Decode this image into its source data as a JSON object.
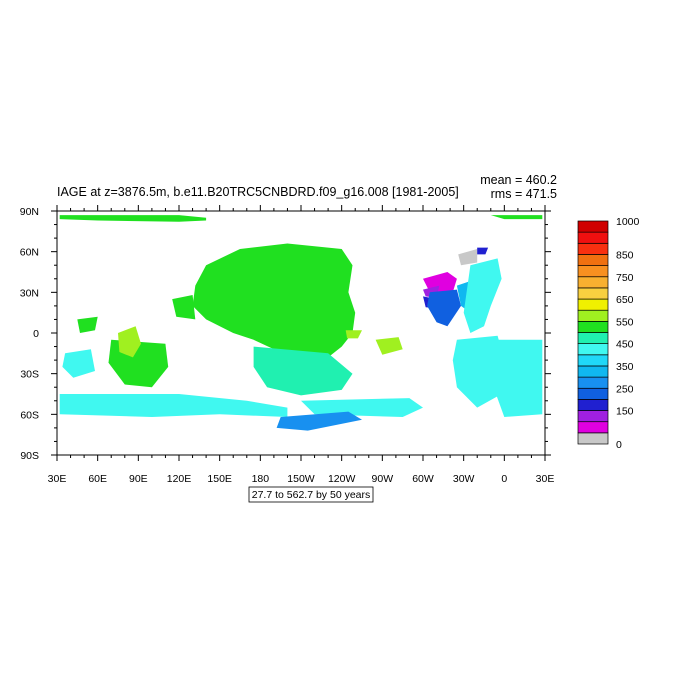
{
  "chart_data": {
    "type": "heatmap",
    "title": "IAGE at z=3876.5m, b.e11.B20TRC5CNBDRD.f09_g16.008 [1981-2005]",
    "stats": {
      "mean": "mean = 460.2",
      "rms": "rms = 471.5"
    },
    "x_ticks": [
      "30E",
      "60E",
      "90E",
      "120E",
      "150E",
      "180",
      "150W",
      "120W",
      "90W",
      "60W",
      "30W",
      "0",
      "30E"
    ],
    "y_ticks": [
      "90N",
      "60N",
      "30N",
      "0",
      "30S",
      "60S",
      "90S"
    ],
    "xlim": [
      30,
      390
    ],
    "ylim": [
      -90,
      90
    ],
    "contour_info": "27.7 to 562.7 by 50 years",
    "colorbar": {
      "labels": [
        {
          "value": 1000,
          "text": "1000"
        },
        {
          "value": 850,
          "text": "850"
        },
        {
          "value": 750,
          "text": "750"
        },
        {
          "value": 650,
          "text": "650"
        },
        {
          "value": 550,
          "text": "550"
        },
        {
          "value": 450,
          "text": "450"
        },
        {
          "value": 350,
          "text": "350"
        },
        {
          "value": 250,
          "text": "250"
        },
        {
          "value": 150,
          "text": "150"
        },
        {
          "value": 0,
          "text": "0"
        }
      ],
      "colors": [
        "#c8c8c8",
        "#e000e0",
        "#a020e0",
        "#2020d0",
        "#1060e0",
        "#1890f0",
        "#10b8f0",
        "#20d8f8",
        "#40f8f0",
        "#20f0b0",
        "#20e020",
        "#a0f020",
        "#f0f000",
        "#f8d040",
        "#f8b030",
        "#f89020",
        "#f07010",
        "#f83010",
        "#f01010",
        "#d00000"
      ]
    },
    "regions": [
      {
        "name": "arctic-strip",
        "value": 530,
        "color": "#20e020",
        "points": [
          [
            32,
            87
          ],
          [
            120,
            87
          ],
          [
            140,
            85
          ],
          [
            140,
            83
          ],
          [
            120,
            82
          ],
          [
            60,
            83
          ],
          [
            32,
            84
          ]
        ]
      },
      {
        "name": "arctic-east",
        "value": 520,
        "color": "#20e020",
        "points": [
          [
            350,
            87
          ],
          [
            388,
            87
          ],
          [
            388,
            84
          ],
          [
            360,
            84
          ]
        ]
      },
      {
        "name": "north-pacific",
        "value": 550,
        "color": "#20e020",
        "points": [
          [
            140,
            50
          ],
          [
            165,
            62
          ],
          [
            200,
            66
          ],
          [
            240,
            62
          ],
          [
            248,
            50
          ],
          [
            245,
            30
          ],
          [
            250,
            15
          ],
          [
            248,
            0
          ],
          [
            240,
            -10
          ],
          [
            230,
            -18
          ],
          [
            210,
            -20
          ],
          [
            190,
            -12
          ],
          [
            175,
            -5
          ],
          [
            160,
            0
          ],
          [
            140,
            10
          ],
          [
            130,
            20
          ],
          [
            132,
            35
          ]
        ]
      },
      {
        "name": "east-pacific-light",
        "value": 560,
        "color": "#a0f020",
        "points": [
          [
            243,
            2
          ],
          [
            255,
            2
          ],
          [
            252,
            -4
          ],
          [
            244,
            -4
          ]
        ]
      },
      {
        "name": "central-pacific-south",
        "value": 450,
        "color": "#20f0b0",
        "points": [
          [
            175,
            -10
          ],
          [
            230,
            -15
          ],
          [
            248,
            -30
          ],
          [
            240,
            -42
          ],
          [
            210,
            -46
          ],
          [
            185,
            -40
          ],
          [
            175,
            -25
          ]
        ]
      },
      {
        "name": "indian-ocean",
        "value": 540,
        "color": "#20e020",
        "points": [
          [
            70,
            -5
          ],
          [
            110,
            -8
          ],
          [
            112,
            -25
          ],
          [
            100,
            -40
          ],
          [
            80,
            -38
          ],
          [
            68,
            -22
          ]
        ]
      },
      {
        "name": "indian-light",
        "value": 570,
        "color": "#a0f020",
        "points": [
          [
            75,
            0
          ],
          [
            88,
            5
          ],
          [
            92,
            -8
          ],
          [
            86,
            -18
          ],
          [
            76,
            -14
          ]
        ]
      },
      {
        "name": "west-indian",
        "value": 480,
        "color": "#40f8f0",
        "points": [
          [
            36,
            -15
          ],
          [
            55,
            -12
          ],
          [
            58,
            -28
          ],
          [
            42,
            -33
          ],
          [
            34,
            -25
          ]
        ]
      },
      {
        "name": "arabian-spot",
        "value": 530,
        "color": "#20e020",
        "points": [
          [
            45,
            10
          ],
          [
            60,
            12
          ],
          [
            58,
            2
          ],
          [
            47,
            0
          ]
        ]
      },
      {
        "name": "wanders-west",
        "value": 540,
        "color": "#20e020",
        "points": [
          [
            115,
            25
          ],
          [
            130,
            28
          ],
          [
            132,
            10
          ],
          [
            118,
            12
          ]
        ]
      },
      {
        "name": "southern-ocean-west",
        "value": 400,
        "color": "#40f8f0",
        "points": [
          [
            32,
            -45
          ],
          [
            120,
            -45
          ],
          [
            170,
            -50
          ],
          [
            200,
            -55
          ],
          [
            200,
            -62
          ],
          [
            150,
            -60
          ],
          [
            100,
            -62
          ],
          [
            32,
            -60
          ]
        ]
      },
      {
        "name": "southern-ocean-east",
        "value": 420,
        "color": "#40f8f0",
        "points": [
          [
            210,
            -50
          ],
          [
            290,
            -48
          ],
          [
            300,
            -55
          ],
          [
            285,
            -62
          ],
          [
            220,
            -60
          ]
        ]
      },
      {
        "name": "ross-sea-blue",
        "value": 300,
        "color": "#1890f0",
        "points": [
          [
            195,
            -62
          ],
          [
            245,
            -58
          ],
          [
            255,
            -64
          ],
          [
            215,
            -72
          ],
          [
            192,
            -70
          ]
        ]
      },
      {
        "name": "southeast-pacific",
        "value": 560,
        "color": "#a0f020",
        "points": [
          [
            265,
            -5
          ],
          [
            282,
            -3
          ],
          [
            285,
            -12
          ],
          [
            270,
            -16
          ]
        ]
      },
      {
        "name": "north-atlantic-grey",
        "value": 20,
        "color": "#c8c8c8",
        "points": [
          [
            326,
            58
          ],
          [
            340,
            62
          ],
          [
            340,
            52
          ],
          [
            328,
            50
          ]
        ]
      },
      {
        "name": "north-atlantic-magenta",
        "value": 110,
        "color": "#e000e0",
        "points": [
          [
            300,
            40
          ],
          [
            318,
            45
          ],
          [
            325,
            40
          ],
          [
            322,
            30
          ],
          [
            305,
            30
          ]
        ]
      },
      {
        "name": "north-atlantic-violet",
        "value": 160,
        "color": "#a020e0",
        "points": [
          [
            300,
            32
          ],
          [
            312,
            35
          ],
          [
            310,
            26
          ],
          [
            302,
            27
          ]
        ]
      },
      {
        "name": "north-atlantic-deep-blue",
        "value": 190,
        "color": "#2020d0",
        "points": [
          [
            300,
            27
          ],
          [
            310,
            25
          ],
          [
            312,
            18
          ],
          [
            302,
            19
          ]
        ]
      },
      {
        "name": "north-atlantic-blue",
        "value": 250,
        "color": "#1060e0",
        "points": [
          [
            305,
            30
          ],
          [
            325,
            32
          ],
          [
            328,
            20
          ],
          [
            318,
            5
          ],
          [
            310,
            8
          ],
          [
            303,
            20
          ]
        ]
      },
      {
        "name": "north-atlantic-cyan",
        "value": 330,
        "color": "#10b8f0",
        "points": [
          [
            325,
            35
          ],
          [
            340,
            40
          ],
          [
            345,
            25
          ],
          [
            335,
            15
          ],
          [
            328,
            20
          ]
        ]
      },
      {
        "name": "east-atlantic",
        "value": 380,
        "color": "#40f8f0",
        "points": [
          [
            335,
            50
          ],
          [
            355,
            55
          ],
          [
            358,
            40
          ],
          [
            350,
            20
          ],
          [
            345,
            5
          ],
          [
            335,
            0
          ],
          [
            330,
            15
          ]
        ]
      },
      {
        "name": "south-atlantic",
        "value": 380,
        "color": "#40f8f0",
        "points": [
          [
            325,
            -5
          ],
          [
            355,
            -2
          ],
          [
            360,
            -20
          ],
          [
            358,
            -45
          ],
          [
            340,
            -55
          ],
          [
            325,
            -40
          ],
          [
            322,
            -20
          ]
        ]
      },
      {
        "name": "south-atlantic-east",
        "value": 390,
        "color": "#40f8f0",
        "points": [
          [
            355,
            -5
          ],
          [
            388,
            -5
          ],
          [
            388,
            -60
          ],
          [
            360,
            -62
          ],
          [
            352,
            -40
          ]
        ]
      },
      {
        "name": "atlantic-ne-blue",
        "value": 200,
        "color": "#2020d0",
        "points": [
          [
            340,
            63
          ],
          [
            348,
            63
          ],
          [
            346,
            58
          ],
          [
            340,
            58
          ]
        ]
      }
    ]
  }
}
